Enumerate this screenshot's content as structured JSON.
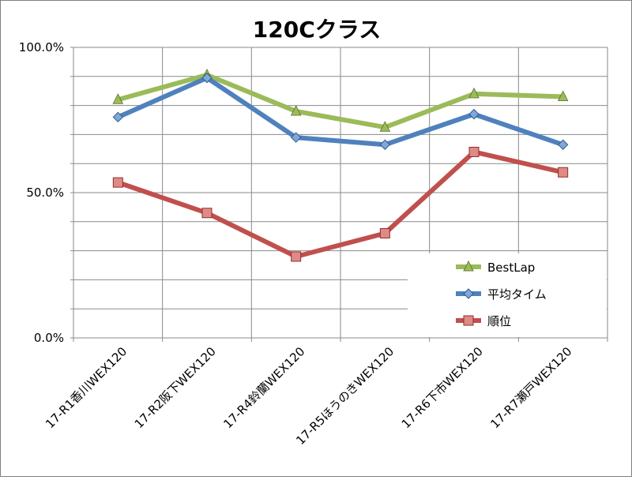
{
  "chart_data": {
    "type": "line",
    "title": "120Cクラス",
    "categories": [
      "17-R1香川WEX120",
      "17-R2阪下WEX120",
      "17-R4鈴蘭WEX120",
      "17-R5ほうのきWEX120",
      "17-R6下市WEX120",
      "17-R7瀬戸WEX120"
    ],
    "ylim": [
      0,
      100
    ],
    "yticks": [
      {
        "value": 0,
        "label": "0.0%"
      },
      {
        "value": 50,
        "label": "50.0%"
      },
      {
        "value": 100,
        "label": "100.0%"
      }
    ],
    "grid": true,
    "legend_position": "bottom-right",
    "series": [
      {
        "name": "BestLap",
        "color": "#9bbb59",
        "marker": "triangle",
        "values": [
          82,
          90.5,
          78,
          72.5,
          84,
          83
        ]
      },
      {
        "name": "平均タイム",
        "color": "#4f81bd",
        "marker": "diamond",
        "values": [
          76,
          89.5,
          69,
          66.5,
          77,
          66.5
        ]
      },
      {
        "name": "順位",
        "color": "#c0504d",
        "marker": "square",
        "values": [
          53.5,
          43,
          28,
          36,
          64,
          57
        ]
      }
    ]
  }
}
